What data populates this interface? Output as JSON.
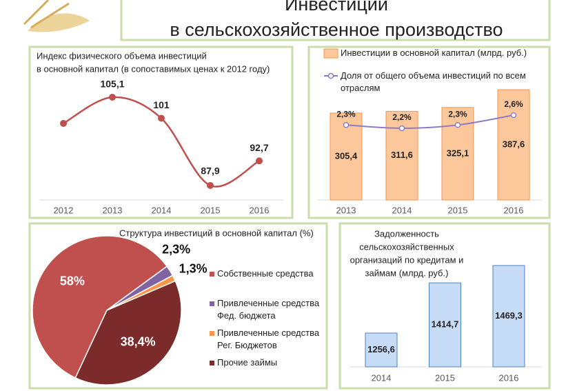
{
  "header": {
    "title_lines": [
      "Инвестиции",
      "в сельскохозяйственное производство"
    ]
  },
  "chart_data": [
    {
      "type": "line",
      "title_lines": [
        "Индекс физического объема инвестиций",
        "в основной капитал (в сопоставимых ценах к 2012 году)"
      ],
      "categories": [
        "2012",
        "2013",
        "2014",
        "2015",
        "2016"
      ],
      "values": [
        100,
        105.1,
        101,
        87.9,
        92.7
      ],
      "value_labels": [
        null,
        "105,1",
        "101",
        "87,9",
        "92,7"
      ],
      "color": "#c0504d"
    },
    {
      "type": "combo",
      "categories": [
        "2013",
        "2014",
        "2015",
        "2016"
      ],
      "series": [
        {
          "name": "Инвестиции в основной капитал (млрд. руб.)",
          "kind": "bar",
          "color": "#fcc79a",
          "edge_color": "#f79646",
          "values": [
            305.4,
            311.6,
            325.1,
            387.6
          ],
          "value_labels": [
            "305,4",
            "311,6",
            "325,1",
            "387,6"
          ]
        },
        {
          "name": "Доля от общего объема инвестиций по всем отраслям",
          "kind": "line",
          "axis": "y2",
          "color": "#8e7cc3",
          "values": [
            2.3,
            2.2,
            2.3,
            2.6
          ],
          "value_labels": [
            "2,3%",
            "2,2%",
            "2,3%",
            "2,6%"
          ]
        }
      ]
    },
    {
      "type": "pie",
      "title": "Структура инвестиций в основной капитал (%)",
      "categories": [
        "Собственные средства",
        "Привлеченные средства Фед. бюджета",
        "Привлеченные средства Рег. Бюджетов",
        "Прочие займы"
      ],
      "values": [
        58,
        2.3,
        1.3,
        38.4
      ],
      "value_labels": [
        "58%",
        "2,3%",
        "1,3%",
        "38,4%"
      ],
      "colors": [
        "#c0504d",
        "#8064a2",
        "#f79646",
        "#7b2b29"
      ]
    },
    {
      "type": "bar",
      "title_lines": [
        "Задолженность",
        "сельскохозяйственных",
        "организаций по кредитам и",
        "займам (млрд. руб.)"
      ],
      "categories": [
        "2014",
        "2015",
        "2016"
      ],
      "values": [
        1256.6,
        1414.7,
        1469.3
      ],
      "value_labels": [
        "1256,6",
        "1414,7",
        "1469,3"
      ],
      "color": "#c6dbf5",
      "edge_color": "#4f81bd"
    }
  ]
}
